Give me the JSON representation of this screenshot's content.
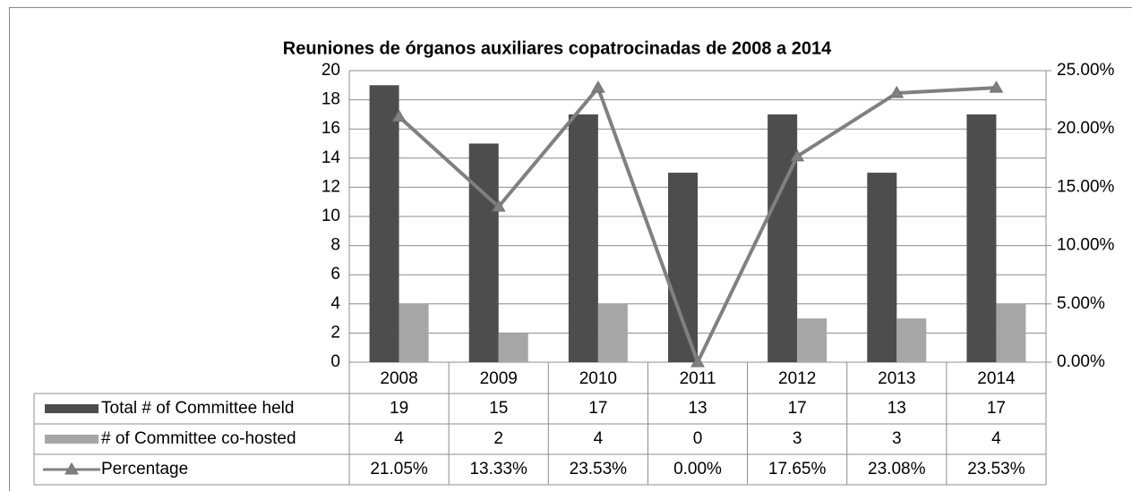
{
  "chart_data": {
    "type": "bar",
    "title": "Reuniones de órganos auxiliares copatrocinadas de 2008 a 2014",
    "categories": [
      "2008",
      "2009",
      "2010",
      "2011",
      "2012",
      "2013",
      "2014"
    ],
    "series": [
      {
        "name": "Total # of Committee held",
        "color": "#4d4d4d",
        "values": [
          19,
          15,
          17,
          13,
          17,
          13,
          17
        ]
      },
      {
        "name": "# of Committee co-hosted",
        "color": "#a6a6a6",
        "values": [
          4,
          2,
          4,
          0,
          3,
          3,
          4
        ]
      },
      {
        "name": "Percentage",
        "color": "#808080",
        "type": "line",
        "axis": "y2",
        "values": [
          21.05,
          13.33,
          23.53,
          0,
          17.65,
          23.08,
          23.53
        ],
        "value_labels": [
          "21.05%",
          "13.33%",
          "23.53%",
          "0.00%",
          "17.65%",
          "23.08%",
          "23.53%"
        ]
      }
    ],
    "ylim": [
      0,
      20
    ],
    "yticks": [
      0,
      2,
      4,
      6,
      8,
      10,
      12,
      14,
      16,
      18,
      20
    ],
    "y2lim": [
      0,
      25
    ],
    "y2ticks": [
      {
        "value": 0,
        "label": "0.00%"
      },
      {
        "value": 5,
        "label": "5.00%"
      },
      {
        "value": 10,
        "label": "10.00%"
      },
      {
        "value": 15,
        "label": "15.00%"
      },
      {
        "value": 20,
        "label": "20.00%"
      },
      {
        "value": 25,
        "label": "25.00%"
      }
    ],
    "grid": true
  }
}
